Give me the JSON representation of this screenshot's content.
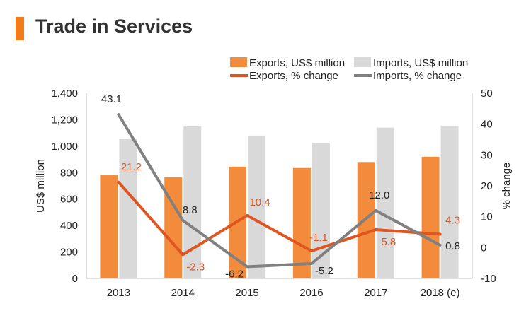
{
  "header": {
    "title": "Trade in Services"
  },
  "colors": {
    "accent": "#F07D1A",
    "exports_bar": "#F28C3C",
    "imports_bar": "#D9D9D9",
    "exports_line": "#E0541F",
    "imports_line": "#808080",
    "axis": "#BFBFBF",
    "text": "#222222"
  },
  "chart_data": {
    "type": "bar+line",
    "title": "Trade in Services",
    "categories": [
      "2013",
      "2014",
      "2015",
      "2016",
      "2017",
      "2018 (e)"
    ],
    "ylabel": "US$ million",
    "y2label": "% change",
    "ylim": [
      0,
      1400
    ],
    "y2lim": [
      -10,
      50
    ],
    "yticks": [
      "0",
      "200",
      "400",
      "600",
      "800",
      "1,000",
      "1,200",
      "1,400"
    ],
    "y2ticks": [
      "-10",
      "0",
      "10",
      "20",
      "30",
      "40",
      "50"
    ],
    "legend_position": "top-right",
    "grid": false,
    "bars": [
      {
        "name": "Exports, US$ million",
        "values": [
          780,
          765,
          845,
          835,
          880,
          920
        ]
      },
      {
        "name": "Imports, US$ million",
        "values": [
          1055,
          1150,
          1080,
          1020,
          1140,
          1155
        ]
      }
    ],
    "lines": [
      {
        "name": "Exports, % change",
        "values": [
          21.2,
          -2.3,
          10.4,
          -1.1,
          5.8,
          4.3
        ],
        "labels": [
          "21.2",
          "-2.3",
          "10.4",
          "-1.1",
          "5.8",
          "4.3"
        ]
      },
      {
        "name": "Imports, % change",
        "values": [
          43.1,
          8.8,
          -6.2,
          -5.2,
          12.0,
          0.8
        ],
        "labels": [
          "43.1",
          "8.8",
          "-6.2",
          "-5.2",
          "12.0",
          "0.8"
        ]
      }
    ]
  }
}
